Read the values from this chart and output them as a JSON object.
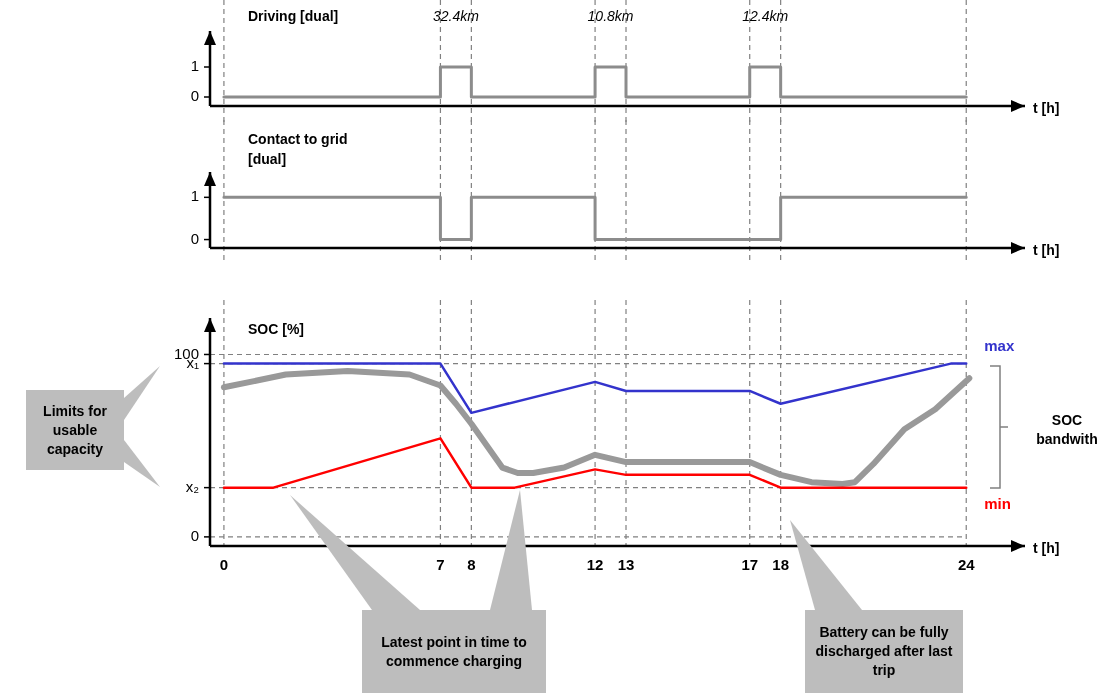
{
  "chart_data": [
    {
      "type": "step",
      "title": "Driving [dual]",
      "xlabel": "t [h]",
      "x": [
        0,
        7,
        8,
        12,
        13,
        17,
        18,
        24
      ],
      "values": [
        0,
        1,
        0,
        1,
        0,
        1,
        0,
        0
      ],
      "color": "#8c8c8c",
      "xlim": [
        -0.45,
        25.9
      ],
      "xticks": [
        0,
        7,
        8,
        12,
        13,
        17,
        18,
        24
      ],
      "ylim": [
        -0.3,
        2.2
      ],
      "yticks": [
        0,
        1
      ],
      "grid": "x",
      "tick_labels": "y",
      "annotations": [
        "32.4km",
        "10.8km",
        "12.4km"
      ]
    },
    {
      "type": "step",
      "title": "Contact to grid [dual]",
      "xlabel": "t [h]",
      "x": [
        0,
        7,
        8,
        12,
        18,
        24
      ],
      "values": [
        1,
        0,
        1,
        0,
        1,
        1
      ],
      "color": "#8c8c8c",
      "xlim": [
        -0.45,
        25.9
      ],
      "xticks": [
        0,
        7,
        8,
        12,
        13,
        17,
        18,
        24
      ],
      "ylim": [
        -0.2,
        1.6
      ],
      "yticks": [
        0,
        1
      ],
      "grid": "x",
      "tick_labels": "y"
    },
    {
      "type": "line",
      "title": "SOC [%]",
      "xlabel": "t [h]",
      "xlim": [
        -0.45,
        25.9
      ],
      "xticks": [
        0,
        7,
        8,
        12,
        13,
        17,
        18,
        24
      ],
      "ylim": [
        -5,
        120
      ],
      "yticks": [
        0,
        {
          "value": 27,
          "label": "x₂"
        },
        {
          "value": 95,
          "label": "x₁"
        },
        100
      ],
      "grid": true,
      "series": [
        {
          "name": "max",
          "color": "#3333cc",
          "x": [
            0,
            7,
            8,
            12,
            13,
            17,
            18,
            23.5,
            24
          ],
          "values": [
            95,
            95,
            68,
            85,
            80,
            80,
            73,
            95,
            95
          ]
        },
        {
          "name": "min",
          "color": "#ff0000",
          "x": [
            0,
            1.6,
            7,
            8,
            9.4,
            12,
            13,
            17,
            18,
            24
          ],
          "values": [
            27,
            27,
            54,
            27,
            27,
            37,
            34,
            34,
            27,
            27
          ]
        },
        {
          "color": "#999999",
          "x": [
            0,
            2,
            4,
            6,
            7,
            7.5,
            8,
            9,
            9.5,
            10,
            11,
            12,
            13,
            17,
            18,
            19,
            20,
            20.4,
            21,
            22,
            23,
            24.1
          ],
          "values": [
            82,
            89,
            91,
            89,
            83,
            73,
            62,
            38,
            35,
            35,
            38,
            45,
            41,
            41,
            34,
            30,
            29,
            30,
            40,
            59,
            70,
            87
          ]
        }
      ],
      "annotations": [
        "Limits for usable capacity",
        "SOC bandwith",
        "Latest point in time to commence charging",
        "Battery can be fully discharged after last trip"
      ]
    }
  ]
}
